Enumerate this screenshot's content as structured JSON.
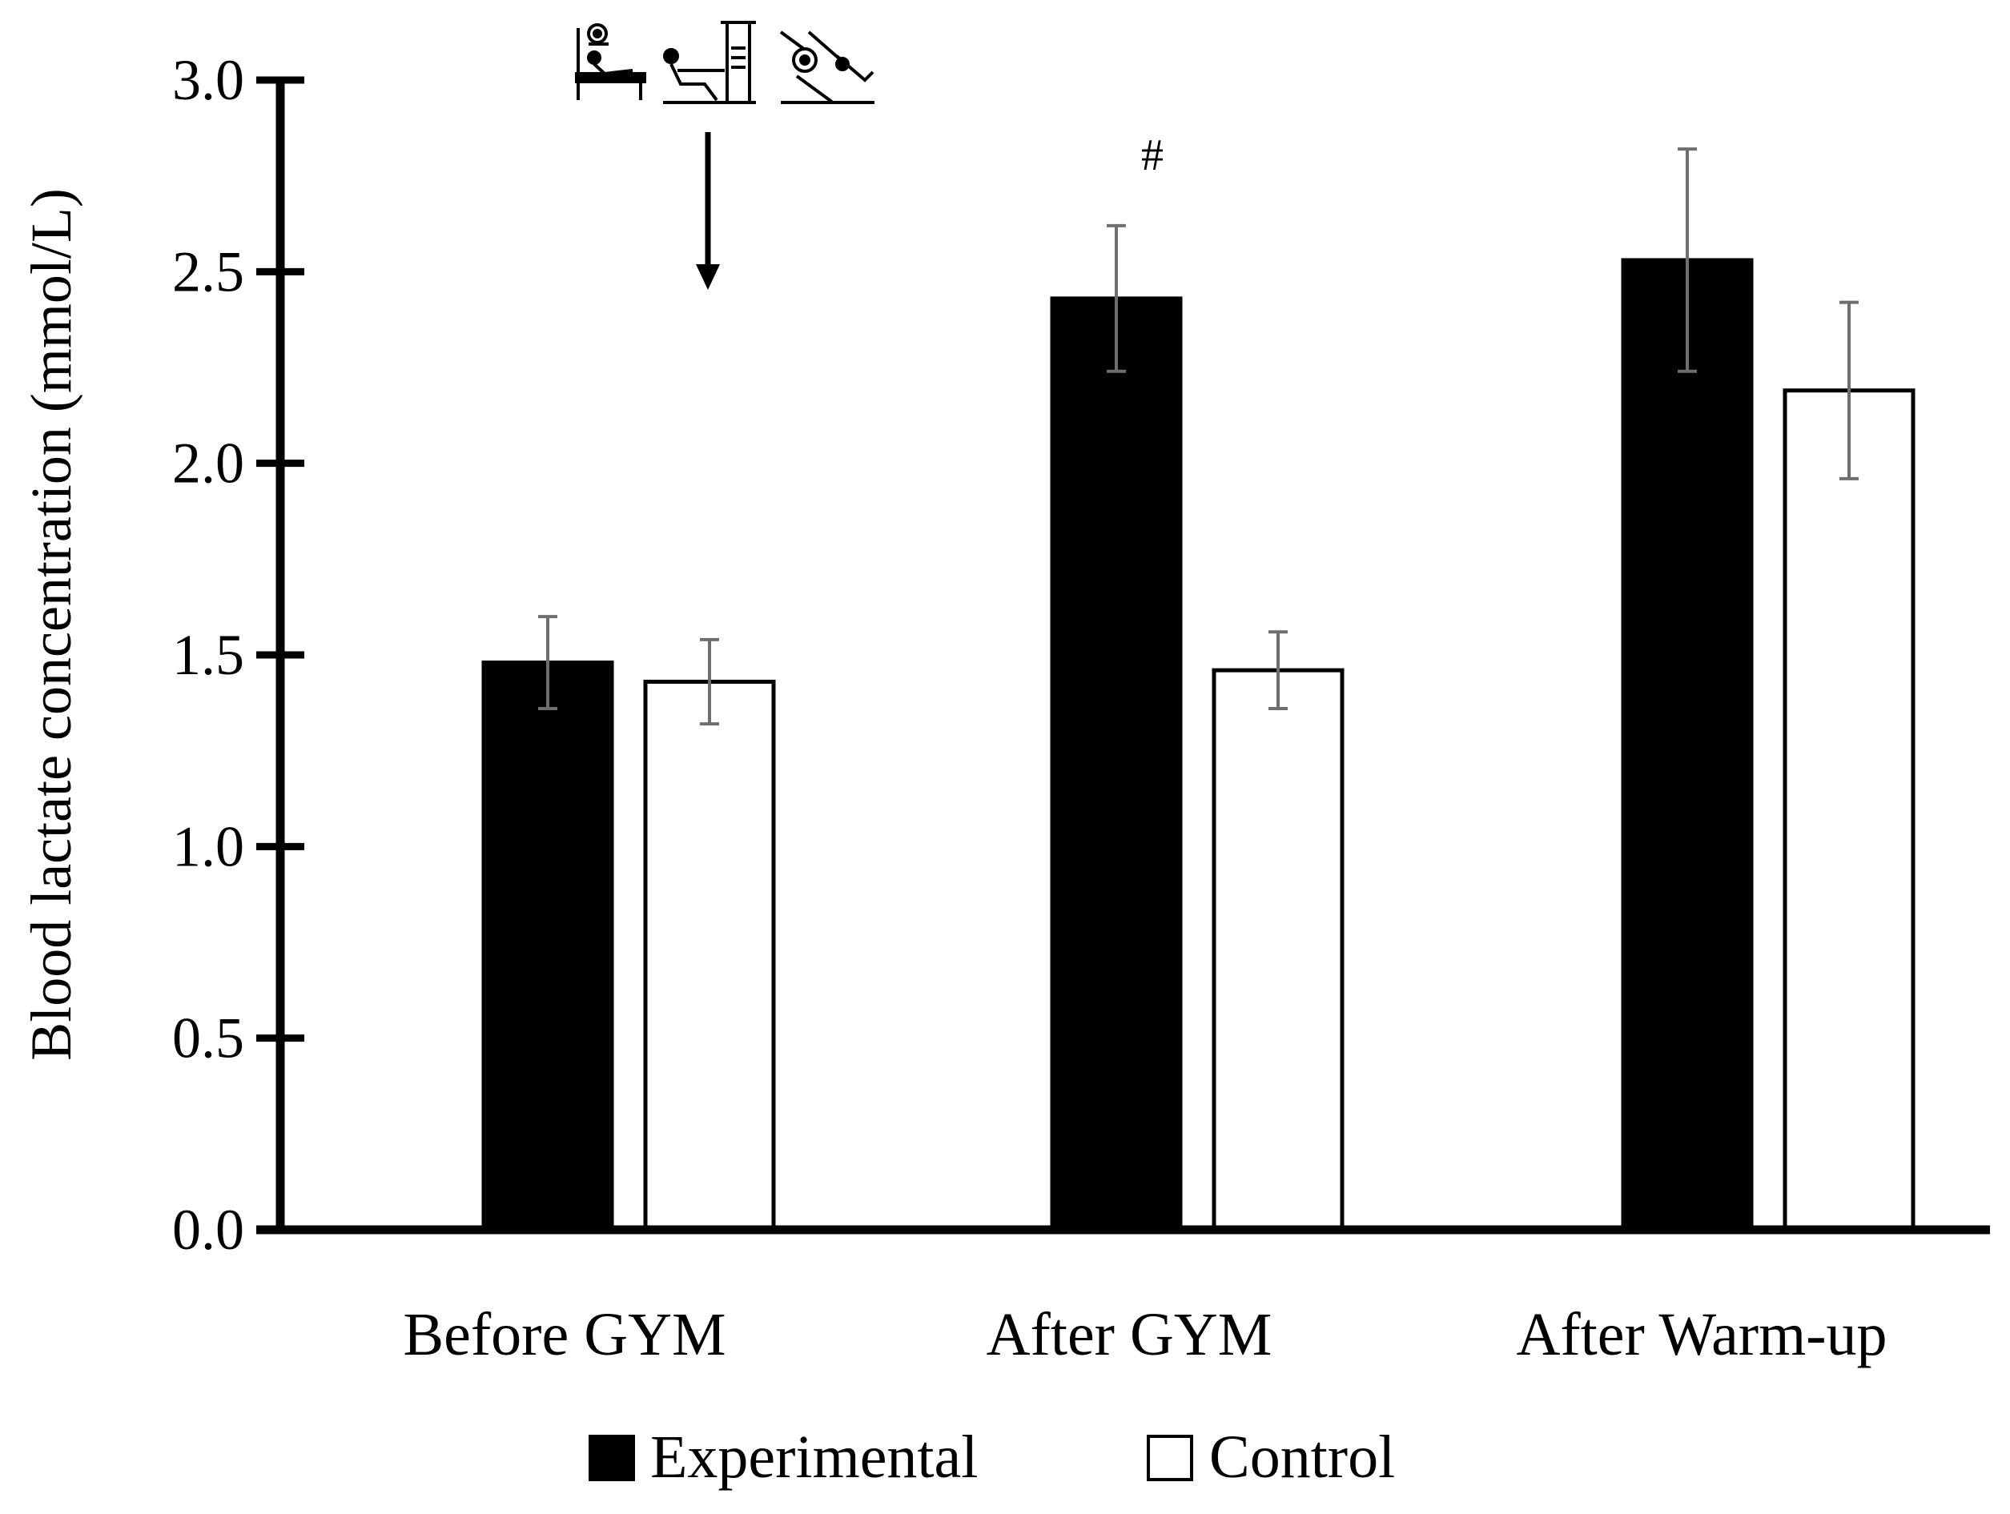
{
  "chart_data": {
    "type": "bar",
    "title": "",
    "xlabel": "",
    "ylabel": "Blood lactate concentration (mmol/L)",
    "ylim": [
      0,
      3.0
    ],
    "yticks": [
      "0.0",
      "0.5",
      "1.0",
      "1.5",
      "2.0",
      "2.5",
      "3.0"
    ],
    "ytick_values": [
      0,
      0.5,
      1.0,
      1.5,
      2.0,
      2.5,
      3.0
    ],
    "grid": false,
    "categories": [
      "Before GYM",
      "After GYM",
      "After Warm-up"
    ],
    "series": [
      {
        "name": "Experimental",
        "fill": "#000000",
        "values": [
          1.48,
          2.43,
          2.53
        ],
        "error": [
          0.12,
          0.19,
          0.29
        ]
      },
      {
        "name": "Control",
        "fill": "#ffffff",
        "values": [
          1.43,
          1.46,
          2.19
        ],
        "error": [
          0.11,
          0.1,
          0.23
        ]
      }
    ],
    "annotations": [
      {
        "text": "#",
        "category": "After GYM",
        "series": "Experimental"
      }
    ],
    "intervention_marker": {
      "icon": "gym-equipment-icon",
      "between": [
        "Before GYM",
        "After GYM"
      ]
    },
    "legend_position": "bottom-center"
  },
  "colors": {
    "axis": "#000000",
    "error_bar": "#6e6e6e",
    "bar_outline": "#000000"
  }
}
